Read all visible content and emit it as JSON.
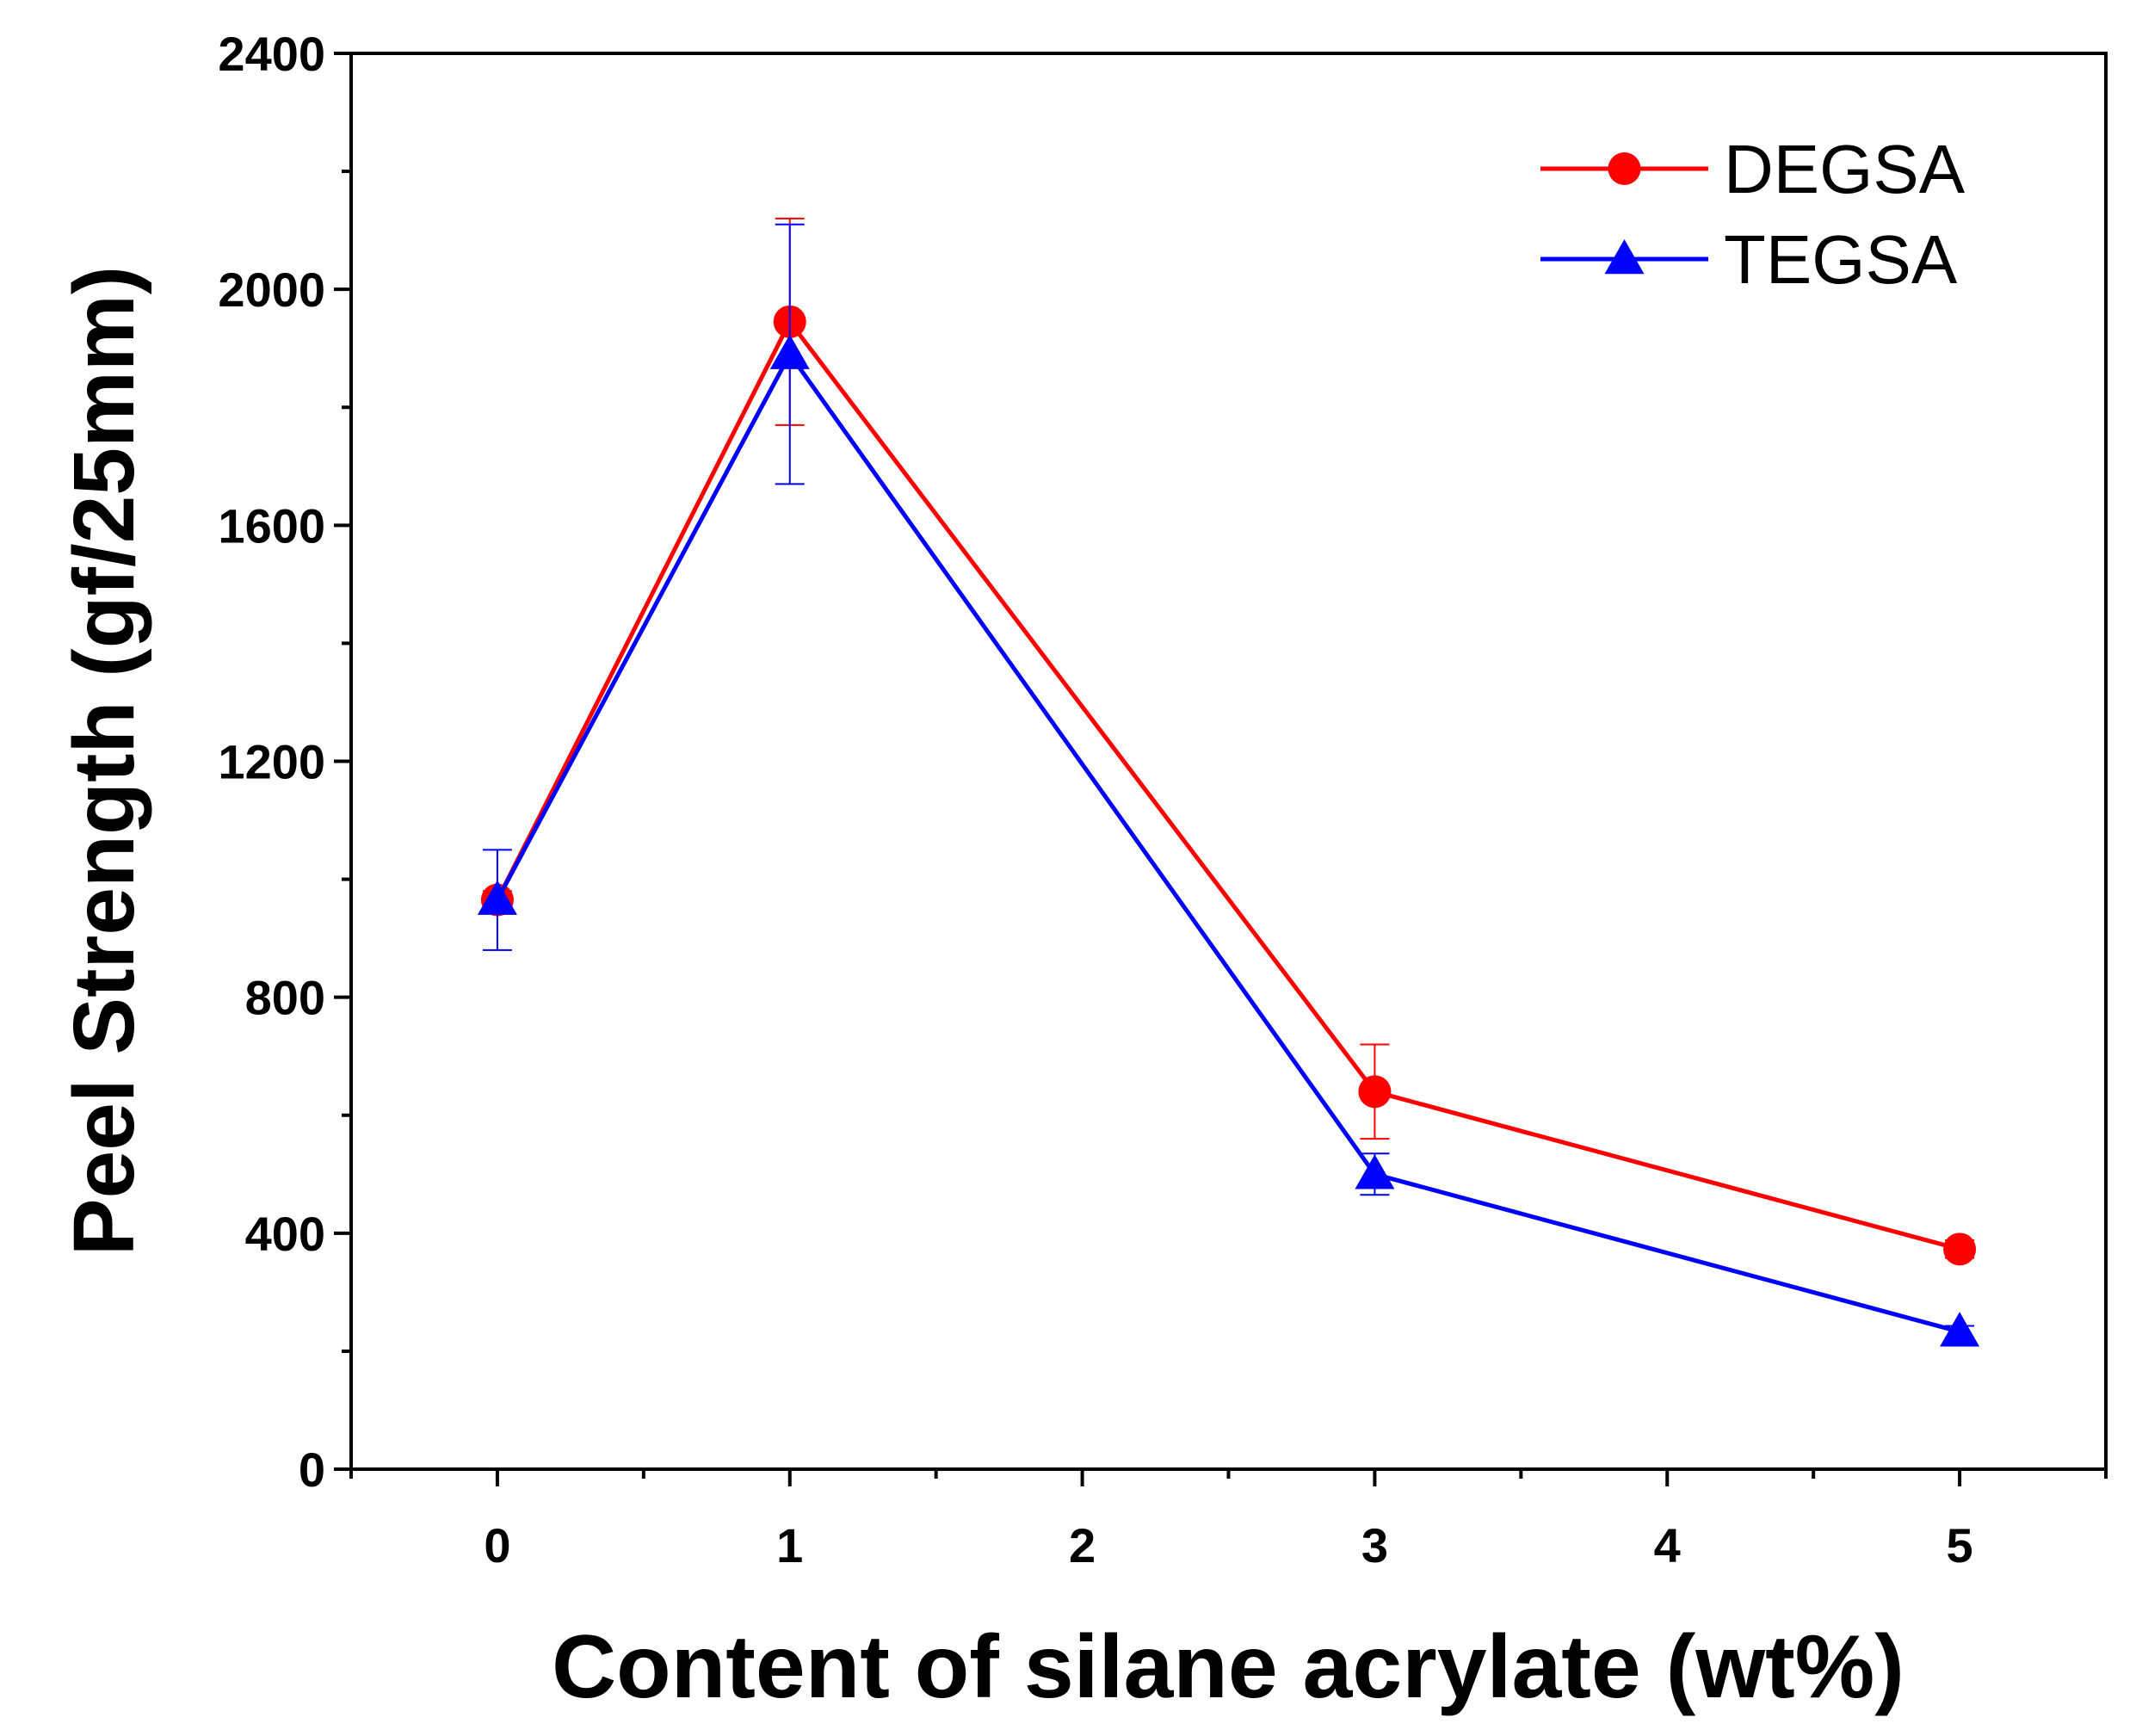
{
  "chart_data": {
    "type": "line",
    "title": "",
    "xlabel": "Content of silane acrylate (wt%)",
    "ylabel": "Peel Strength (gf/25mm)",
    "xlim": [
      -0.5,
      5.5
    ],
    "ylim": [
      0,
      2400
    ],
    "x_ticks": [
      0,
      1,
      2,
      3,
      4,
      5
    ],
    "y_ticks": [
      0,
      400,
      800,
      1200,
      1600,
      2000,
      2400
    ],
    "legend_position": "top-right",
    "series": [
      {
        "name": "DEGSA",
        "color": "#ff0000",
        "marker": "circle",
        "x": [
          0,
          1,
          3,
          5
        ],
        "y": [
          965,
          1945,
          640,
          373
        ],
        "err": [
          15,
          175,
          80,
          15
        ]
      },
      {
        "name": "TEGSA",
        "color": "#0000ff",
        "marker": "triangle",
        "x": [
          0,
          1,
          3,
          5
        ],
        "y": [
          965,
          1890,
          500,
          233
        ],
        "err": [
          85,
          220,
          35,
          10
        ]
      }
    ]
  }
}
